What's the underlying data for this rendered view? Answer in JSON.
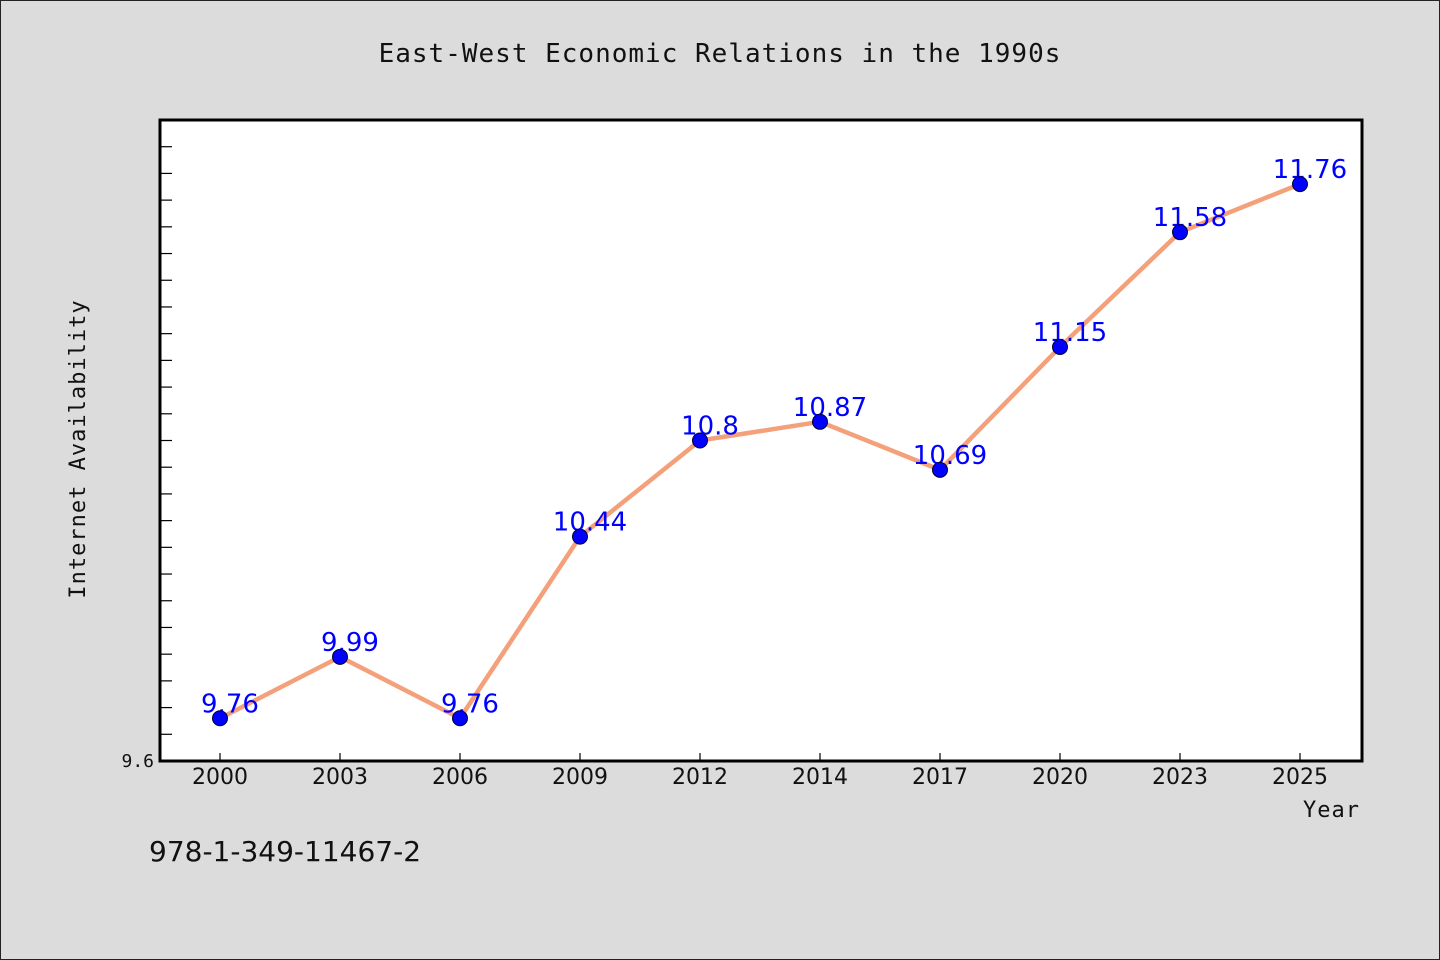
{
  "chart_data": {
    "type": "line",
    "title": "East-West Economic Relations in the 1990s",
    "xlabel": "Year",
    "ylabel": "Internet Availability",
    "categories": [
      "2000",
      "2003",
      "2006",
      "2009",
      "2012",
      "2014",
      "2017",
      "2020",
      "2023",
      "2025"
    ],
    "series": [
      {
        "values": [
          9.76,
          9.99,
          9.76,
          10.44,
          10.8,
          10.87,
          10.69,
          11.15,
          11.58,
          11.76
        ],
        "labels": [
          "9.76",
          "9.99",
          "9.76",
          "10.44",
          "10.8",
          "10.87",
          "10.69",
          "11.15",
          "11.58",
          "11.76"
        ]
      }
    ],
    "ylim": [
      9.6,
      12.0
    ],
    "yticks_labeled": [
      "9.6"
    ],
    "grid": false,
    "legend": "none",
    "colors": {
      "line": "#f4a07a",
      "marker": "#0000ff",
      "data_label": "#0000ff",
      "plot_bg": "#ffffff",
      "figure_bg": "#dcdcdc"
    }
  },
  "footer": {
    "isbn": "978-1-349-11467-2"
  }
}
